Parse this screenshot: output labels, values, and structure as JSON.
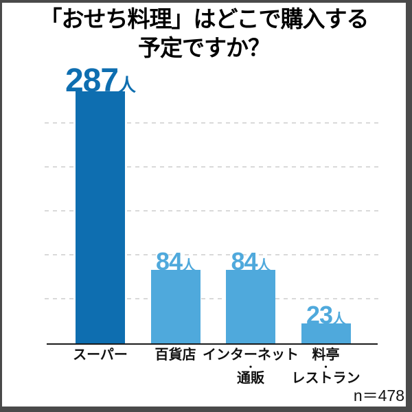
{
  "chart_data": {
    "type": "bar",
    "title_lines": [
      "「おせち料理」はどこで購入する",
      "予定ですか？"
    ],
    "unit": "人",
    "categories": [
      {
        "key": "supermarket",
        "label_lines": [
          "スーパー"
        ],
        "value": 287,
        "emphasis": true
      },
      {
        "key": "department-store",
        "label_lines": [
          "百貨店"
        ],
        "value": 84,
        "emphasis": false
      },
      {
        "key": "internet-mail-order",
        "label_lines": [
          "インターネット",
          "・",
          "通販"
        ],
        "value": 84,
        "emphasis": false
      },
      {
        "key": "ryotei-restaurant",
        "label_lines": [
          "料亭",
          "・",
          "レストラン"
        ],
        "value": 23,
        "emphasis": false
      }
    ],
    "ylim": [
      0,
      300
    ],
    "gridlines": [
      50,
      100,
      150,
      200,
      250
    ],
    "grid_on": true,
    "legend": "none",
    "sample_note": "n＝478",
    "colors": {
      "bar_primary": "#0e6eb0",
      "bar_secondary": "#4fa9dc",
      "grid": "#d9d9d9",
      "axis": "#1a1a1a",
      "title": "#000000",
      "frame_border": "#4a4a4a"
    }
  }
}
